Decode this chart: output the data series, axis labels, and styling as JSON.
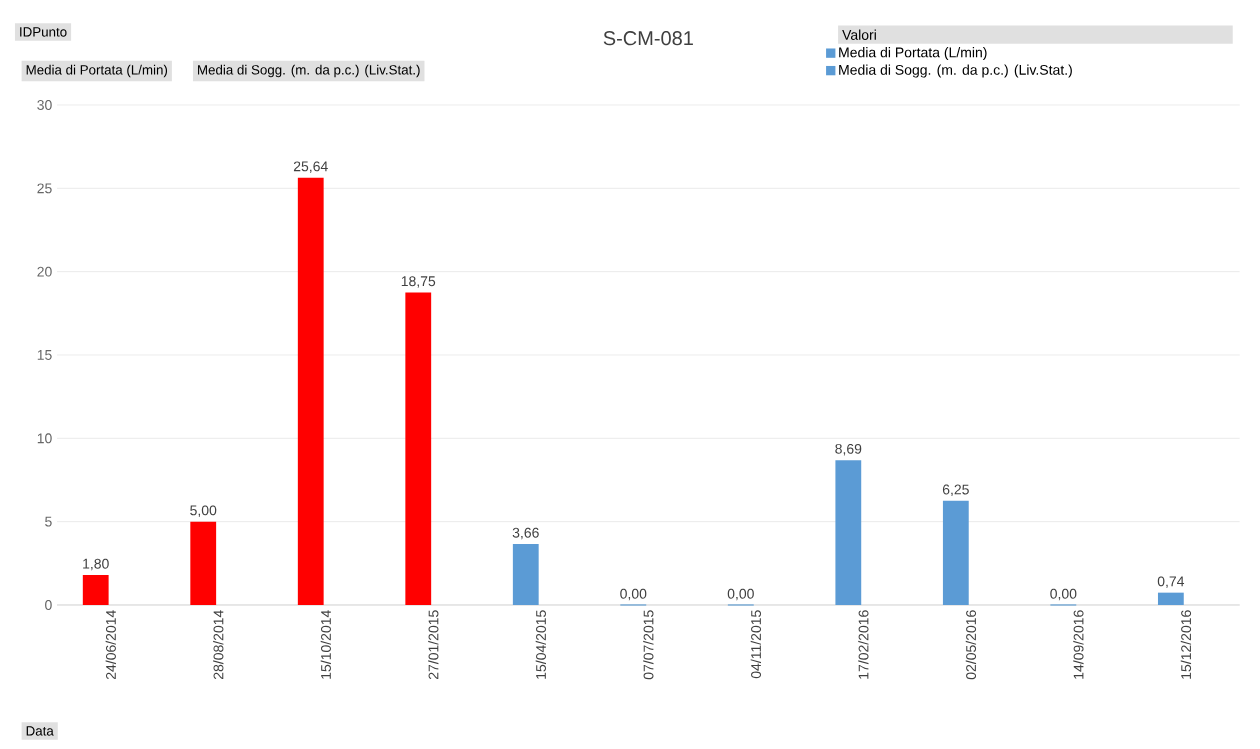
{
  "chart_data": {
    "type": "bar",
    "title": "S-CM-081",
    "legend_title": "Valori",
    "categories": [
      "24/06/2014",
      "28/08/2014",
      "15/10/2014",
      "27/01/2015",
      "15/04/2015",
      "07/07/2015",
      "04/11/2015",
      "17/02/2016",
      "02/05/2016",
      "14/09/2016",
      "15/12/2016"
    ],
    "series": [
      {
        "name": "Media di Portata (L/min)",
        "color": "#5b9bd5",
        "colors": [
          "#ff0000",
          "#ff0000",
          "#ff0000",
          "#ff0000",
          "#5b9bd5",
          "#5b9bd5",
          "#5b9bd5",
          "#5b9bd5",
          "#5b9bd5",
          "#5b9bd5",
          "#5b9bd5"
        ],
        "values": [
          1.8,
          5.0,
          25.64,
          18.75,
          3.66,
          0,
          0,
          8.69,
          6.25,
          0,
          0.74
        ],
        "value_labels": [
          "1,80",
          "5,00",
          "25,64",
          "18,75",
          "3,66",
          "0,00",
          "0,00",
          "8,69",
          "6,25",
          "0,00",
          "0,74"
        ]
      },
      {
        "name": "Media di Sogg. (m. da p.c.) (Liv.Stat.)",
        "color": "#5b9bd5",
        "values": [
          null,
          null,
          null,
          null,
          null,
          null,
          null,
          null,
          null,
          null,
          null
        ]
      }
    ],
    "ylim": [
      0,
      30
    ],
    "yticks": [
      0,
      5,
      10,
      15,
      20,
      25,
      30
    ],
    "grid": "y",
    "legend": "top right",
    "annotations": [
      "IDPunto",
      "Media di Portata (L/min)",
      "Media di Sogg. (m. da p.c.) (Liv.Stat.)",
      "Data"
    ]
  }
}
